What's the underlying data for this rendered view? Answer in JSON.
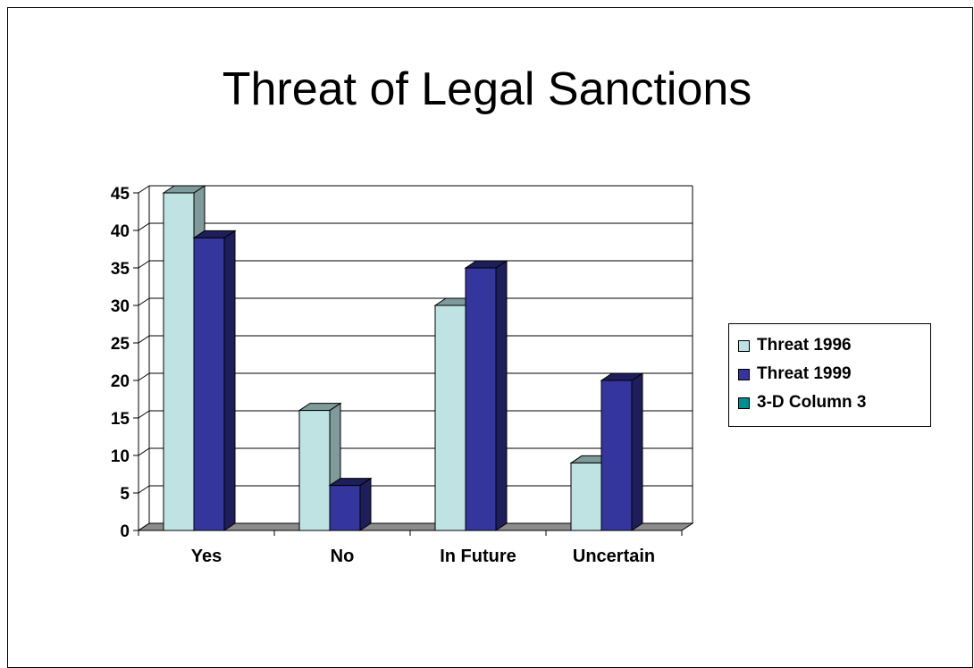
{
  "chart_data": {
    "type": "bar",
    "title": "Threat of Legal Sanctions",
    "categories": [
      "Yes",
      "No",
      "In Future",
      "Uncertain"
    ],
    "series": [
      {
        "name": "Threat 1996",
        "values": [
          45,
          16,
          30,
          9
        ],
        "color": "#bfe3e3",
        "side": "#7e9a9a"
      },
      {
        "name": "Threat 1999",
        "values": [
          39,
          6,
          35,
          20
        ],
        "color": "#35359e",
        "side": "#1e1e5a"
      },
      {
        "name": "3-D Column 3",
        "values": [
          0,
          0,
          0,
          0
        ],
        "color": "#008e8e",
        "side": "#005a5a"
      }
    ],
    "yticks": [
      "0",
      "5",
      "10",
      "15",
      "20",
      "25",
      "30",
      "35",
      "40",
      "45"
    ],
    "ylim": [
      0,
      45
    ],
    "grid": true,
    "legend_position": "right"
  }
}
